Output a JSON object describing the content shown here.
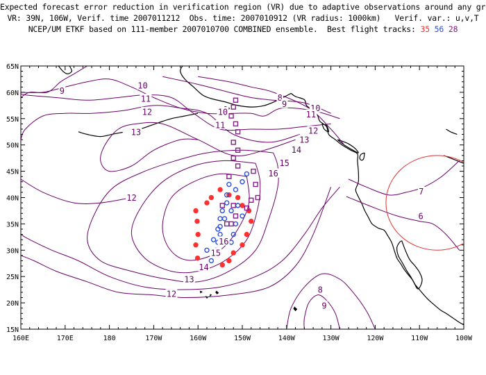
{
  "title": {
    "line1": "Expected forecast error reduction in verification region (VR) due to adaptive observations around any grid point.",
    "line2": "VR: 39N, 106W, Verif. time 2007011212  Obs. time: 2007010912 (VR radius: 1000km)   Verif. var.: u,v,T",
    "line3_prefix": "NCEP/UM ETKF based on 111-member 2007010700 COMBINED ensemble.  Best flight tracks: ",
    "tracks": [
      "35",
      "56",
      "28"
    ]
  },
  "colors": {
    "contour": "#6a006a",
    "track_35": "#ff3030",
    "track_56": "#2a4fe0",
    "track_28": "#8b1a8b",
    "verification_circle": "#e03030",
    "coast": "#000000"
  },
  "map": {
    "projection": "lat-lon",
    "lon_range": [
      160,
      260
    ],
    "lat_range": [
      15,
      65
    ],
    "x_ticks": [
      "160E",
      "170E",
      "180",
      "170W",
      "160W",
      "150W",
      "140W",
      "130W",
      "120W",
      "110W",
      "100W"
    ],
    "y_ticks": [
      "15N",
      "20N",
      "25N",
      "30N",
      "35N",
      "40N",
      "45N",
      "50N",
      "55N",
      "60N",
      "65N"
    ]
  },
  "contours": [
    {
      "value": "6",
      "points": [
        [
          233.5,
          40.2
        ],
        [
          240,
          38
        ],
        [
          245,
          36.5
        ],
        [
          250,
          35.5
        ],
        [
          253,
          35
        ],
        [
          256,
          33
        ],
        [
          259,
          30
        ]
      ]
    },
    {
      "value": "7",
      "points": [
        [
          234,
          43.5
        ],
        [
          238,
          42
        ],
        [
          243,
          40.5
        ],
        [
          247,
          41
        ],
        [
          251,
          42
        ],
        [
          255,
          44
        ],
        [
          259,
          47
        ]
      ]
    },
    {
      "value": "8",
      "points": [
        [
          233,
          50
        ],
        [
          230,
          53
        ],
        [
          225,
          57
        ],
        [
          217,
          60
        ],
        [
          212,
          61
        ],
        [
          207,
          62
        ],
        [
          200,
          63
        ]
      ]
    },
    {
      "value": "8",
      "points": [
        [
          240,
          15
        ],
        [
          238,
          18.5
        ],
        [
          235,
          22
        ],
        [
          232,
          24.5
        ],
        [
          228,
          25.5
        ],
        [
          224,
          23
        ],
        [
          221,
          19
        ],
        [
          220,
          15
        ]
      ]
    },
    {
      "value": "9",
      "points": [
        [
          230,
          56
        ],
        [
          224,
          58
        ],
        [
          217,
          58.5
        ],
        [
          212,
          59
        ],
        [
          207,
          60
        ],
        [
          200,
          61.5
        ],
        [
          192,
          63
        ]
      ]
    },
    {
      "value": "9",
      "points": [
        [
          232,
          15
        ],
        [
          231,
          18
        ],
        [
          229,
          20.5
        ],
        [
          227,
          21.5
        ],
        [
          225,
          20
        ],
        [
          224,
          17
        ],
        [
          224,
          15
        ]
      ]
    },
    {
      "value": "9",
      "points": [
        [
          160,
          59
        ],
        [
          162,
          60
        ],
        [
          166,
          60
        ],
        [
          169,
          62
        ],
        [
          172,
          63.5
        ],
        [
          175,
          65
        ]
      ]
    },
    {
      "value": "10",
      "points": [
        [
          232,
          55
        ],
        [
          226,
          56.5
        ],
        [
          219,
          57
        ],
        [
          215,
          55.5
        ],
        [
          212,
          56
        ],
        [
          208,
          56
        ],
        [
          202,
          56
        ],
        [
          196,
          57
        ],
        [
          190,
          59
        ],
        [
          185,
          61
        ],
        [
          180,
          62.5
        ],
        [
          175,
          62
        ],
        [
          170,
          61
        ],
        [
          165,
          60
        ],
        [
          160,
          60
        ]
      ]
    },
    {
      "value": "11",
      "points": [
        [
          230,
          54
        ],
        [
          224,
          53.5
        ],
        [
          218,
          53
        ],
        [
          212,
          53
        ],
        [
          205,
          53
        ],
        [
          199,
          56
        ],
        [
          194,
          59
        ],
        [
          188,
          59.5
        ],
        [
          182,
          59
        ],
        [
          175,
          58.5
        ],
        [
          168,
          59
        ],
        [
          161,
          59.5
        ],
        [
          160,
          59.8
        ]
      ]
    },
    {
      "value": "12",
      "points": [
        [
          223,
          52
        ],
        [
          216,
          50.5
        ],
        [
          208,
          52
        ],
        [
          202,
          56
        ],
        [
          196,
          57
        ],
        [
          190,
          57.5
        ],
        [
          183,
          56.5
        ],
        [
          176,
          56
        ],
        [
          170,
          56
        ],
        [
          165,
          55.5
        ],
        [
          161,
          53
        ],
        [
          160,
          51
        ]
      ]
    },
    {
      "value": "13",
      "points": [
        [
          222,
          51
        ],
        [
          215,
          49
        ],
        [
          208,
          48
        ],
        [
          200,
          51
        ],
        [
          192,
          54
        ],
        [
          186,
          54
        ],
        [
          182,
          53
        ],
        [
          179,
          50
        ],
        [
          178,
          47
        ],
        [
          180,
          45
        ],
        [
          185,
          46
        ],
        [
          190,
          49
        ],
        [
          196,
          51
        ],
        [
          200,
          51
        ]
      ]
    },
    {
      "value": "14",
      "points": [
        [
          217,
          48.5
        ],
        [
          210,
          49
        ],
        [
          202,
          48.5
        ],
        [
          195,
          47
        ],
        [
          188,
          45
        ],
        [
          181,
          42
        ],
        [
          177,
          37.5
        ],
        [
          175,
          32
        ],
        [
          178,
          28
        ],
        [
          185,
          26
        ],
        [
          193,
          24.5
        ],
        [
          200,
          24
        ],
        [
          207,
          26
        ],
        [
          213,
          30
        ],
        [
          216,
          36
        ],
        [
          218,
          42
        ],
        [
          218,
          46
        ],
        [
          217,
          48.5
        ]
      ]
    },
    {
      "value": "15",
      "points": [
        [
          213,
          46.5
        ],
        [
          206,
          47
        ],
        [
          199,
          46
        ],
        [
          192,
          43
        ],
        [
          187,
          38
        ],
        [
          185,
          33
        ],
        [
          188,
          28.5
        ],
        [
          194,
          26
        ],
        [
          200,
          26
        ],
        [
          206,
          28
        ],
        [
          211,
          32
        ],
        [
          213.5,
          38
        ],
        [
          214,
          43
        ],
        [
          213,
          46.5
        ]
      ]
    },
    {
      "value": "16",
      "points": [
        [
          211,
          44
        ],
        [
          205,
          44.5
        ],
        [
          199,
          43
        ],
        [
          194,
          40
        ],
        [
          192,
          35
        ],
        [
          193,
          31
        ],
        [
          196,
          28.5
        ],
        [
          200,
          28.2
        ],
        [
          205,
          30
        ],
        [
          209,
          34
        ],
        [
          211.5,
          39
        ],
        [
          211,
          44
        ]
      ]
    },
    {
      "value": "13",
      "points": [
        [
          232,
          42
        ],
        [
          228,
          38
        ],
        [
          224,
          33
        ],
        [
          219,
          28
        ],
        [
          213,
          25
        ],
        [
          205,
          23
        ],
        [
          196,
          22.5
        ],
        [
          188,
          23
        ],
        [
          180,
          25
        ],
        [
          173,
          28
        ],
        [
          167,
          30
        ],
        [
          162,
          32
        ],
        [
          160,
          33
        ]
      ]
    },
    {
      "value": "12",
      "points": [
        [
          230,
          42
        ],
        [
          226,
          33
        ],
        [
          222,
          27
        ],
        [
          216,
          23
        ],
        [
          207,
          21.5
        ],
        [
          197,
          21
        ],
        [
          190,
          21.5
        ],
        [
          182,
          22
        ],
        [
          175,
          24
        ],
        [
          168,
          26
        ],
        [
          163,
          28
        ],
        [
          160,
          29
        ]
      ]
    },
    {
      "value": "12",
      "points": [
        [
          160,
          43.5
        ],
        [
          165,
          41
        ],
        [
          172,
          39
        ],
        [
          178,
          39
        ],
        [
          185,
          40
        ]
      ]
    }
  ],
  "contour_labels": [
    {
      "text": "10",
      "lon": 187.5,
      "lat": 61.3
    },
    {
      "text": "9",
      "lon": 169.3,
      "lat": 60.3
    },
    {
      "text": "11",
      "lon": 188.2,
      "lat": 58.8
    },
    {
      "text": "12",
      "lon": 188.5,
      "lat": 56.3
    },
    {
      "text": "13",
      "lon": 186.0,
      "lat": 52.5
    },
    {
      "text": "12",
      "lon": 185.0,
      "lat": 40.0
    },
    {
      "text": "8",
      "lon": 218.5,
      "lat": 59.0
    },
    {
      "text": "9",
      "lon": 219.5,
      "lat": 57.8
    },
    {
      "text": "10",
      "lon": 226.5,
      "lat": 57.0
    },
    {
      "text": "10",
      "lon": 205.6,
      "lat": 56.3
    },
    {
      "text": "11",
      "lon": 225.5,
      "lat": 55.8
    },
    {
      "text": "11",
      "lon": 205.0,
      "lat": 53.8
    },
    {
      "text": "12",
      "lon": 226.0,
      "lat": 52.7
    },
    {
      "text": "13",
      "lon": 224.0,
      "lat": 51.0
    },
    {
      "text": "14",
      "lon": 222.2,
      "lat": 49.1
    },
    {
      "text": "15",
      "lon": 219.5,
      "lat": 46.6
    },
    {
      "text": "16",
      "lon": 217.0,
      "lat": 44.6
    },
    {
      "text": "16",
      "lon": 205.8,
      "lat": 31.7
    },
    {
      "text": "15",
      "lon": 204.0,
      "lat": 29.5
    },
    {
      "text": "14",
      "lon": 201.3,
      "lat": 26.8
    },
    {
      "text": "13",
      "lon": 198.0,
      "lat": 24.5
    },
    {
      "text": "12",
      "lon": 194.0,
      "lat": 21.7
    },
    {
      "text": "7",
      "lon": 250.4,
      "lat": 41.2
    },
    {
      "text": "6",
      "lon": 250.3,
      "lat": 36.5
    },
    {
      "text": "8",
      "lon": 227.6,
      "lat": 22.5
    },
    {
      "text": "9",
      "lon": 228.5,
      "lat": 19.5
    }
  ],
  "verification_region": {
    "center_lon": 254,
    "center_lat": 39,
    "radius_km": 1000
  },
  "flight_tracks": [
    {
      "name": "35",
      "marker": "filled-circle",
      "points": [
        [
          199.5,
          37.5
        ],
        [
          199.8,
          35.5
        ],
        [
          200,
          33
        ],
        [
          199.5,
          31
        ],
        [
          199.9,
          28.5
        ],
        [
          201.5,
          26.5
        ],
        [
          205.5,
          27.2
        ],
        [
          207,
          28
        ],
        [
          208,
          29.5
        ],
        [
          210,
          31
        ],
        [
          211,
          33
        ],
        [
          212,
          35.5
        ],
        [
          211.5,
          37.5
        ],
        [
          210,
          38.5
        ],
        [
          209,
          40
        ],
        [
          207,
          40.5
        ],
        [
          205,
          41.5
        ],
        [
          203,
          40
        ],
        [
          202,
          39
        ]
      ]
    },
    {
      "name": "56",
      "marker": "open-circle",
      "points": [
        [
          211,
          44.5
        ],
        [
          210,
          43
        ],
        [
          208.5,
          41.5
        ],
        [
          207,
          42.5
        ],
        [
          206.5,
          40.5
        ],
        [
          206.5,
          39
        ],
        [
          205.5,
          37.5
        ],
        [
          205,
          36
        ],
        [
          205,
          34.5
        ],
        [
          205,
          33
        ],
        [
          204.5,
          31.5
        ],
        [
          204,
          30
        ],
        [
          203,
          28
        ],
        [
          202,
          30
        ],
        [
          203.5,
          32
        ],
        [
          204.5,
          34
        ],
        [
          206,
          36
        ],
        [
          207.5,
          37.5
        ],
        [
          209,
          38.5
        ],
        [
          210,
          36.5
        ],
        [
          208.5,
          35
        ],
        [
          208,
          33
        ],
        [
          207.5,
          31.5
        ]
      ]
    },
    {
      "name": "28",
      "marker": "open-square",
      "points": [
        [
          208.5,
          58.5
        ],
        [
          208,
          57.2
        ],
        [
          207.5,
          55.5
        ],
        [
          208.5,
          54
        ],
        [
          209,
          52.5
        ],
        [
          208,
          50.5
        ],
        [
          209,
          49
        ],
        [
          208,
          47.5
        ],
        [
          209,
          46
        ],
        [
          207,
          44
        ],
        [
          212.5,
          45
        ],
        [
          213,
          42.5
        ],
        [
          213.5,
          40
        ],
        [
          212,
          39.5
        ],
        [
          211,
          38
        ],
        [
          208.5,
          36.5
        ],
        [
          207.5,
          35
        ],
        [
          206.5,
          35
        ],
        [
          208,
          38.5
        ],
        [
          205.5,
          38.5
        ]
      ]
    }
  ]
}
